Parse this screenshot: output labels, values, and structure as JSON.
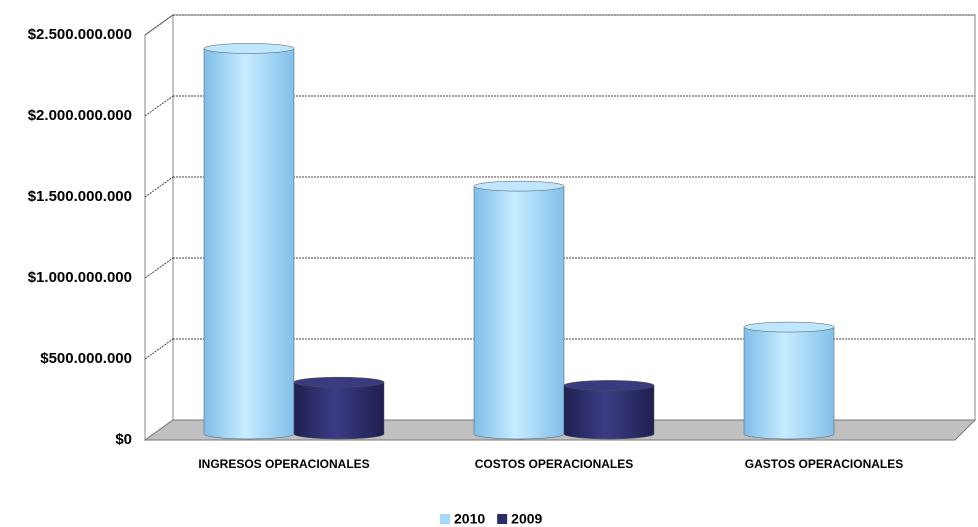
{
  "chart_data": {
    "type": "bar3d",
    "categories": [
      "INGRESOS OPERACIONALES",
      "COSTOS OPERACIONALES",
      "GASTOS OPERACIONALES"
    ],
    "series": [
      {
        "name": "2010",
        "color": "#a6d8fb",
        "values": [
          2380000000,
          1530000000,
          660000000
        ]
      },
      {
        "name": "2009",
        "color": "#2c2c68",
        "values": [
          320000000,
          300000000,
          null
        ]
      }
    ],
    "ylim": [
      0,
      2500000000
    ],
    "yticks": [
      {
        "value": 0,
        "label": "$0"
      },
      {
        "value": 500000000,
        "label": "$500.000.000"
      },
      {
        "value": 1000000000,
        "label": "$1.000.000.000"
      },
      {
        "value": 1500000000,
        "label": "$1.500.000.000"
      },
      {
        "value": 2000000000,
        "label": "$2.000.000.000"
      },
      {
        "value": 2500000000,
        "label": "$2.500.000.000"
      }
    ],
    "grid": true,
    "legend": "bottom"
  }
}
